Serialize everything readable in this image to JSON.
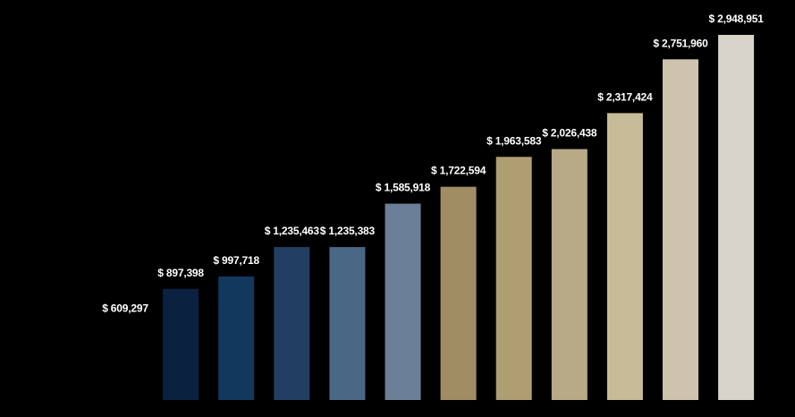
{
  "chart_data": {
    "type": "bar",
    "categories": [
      "",
      "",
      "",
      "",
      "",
      "",
      "",
      "",
      "",
      "",
      "",
      ""
    ],
    "values": [
      609297,
      897398,
      997718,
      1235463,
      1235383,
      1585918,
      1722594,
      1963583,
      2026438,
      2317424,
      2751960,
      2948951
    ],
    "data_labels": [
      "$ 609,297",
      "$ 897,398",
      "$ 997,718",
      "$ 1,235,463",
      "$ 1,235,383",
      "$ 1,585,918",
      "$ 1,722,594",
      "$ 1,963,583",
      "$ 2,026,438",
      "$ 2,317,424",
      "$ 2,751,960",
      "$ 2,948,951"
    ],
    "colors": [
      "#000000",
      "#0a2240",
      "#12385e",
      "#223f63",
      "#4a6886",
      "#6b8098",
      "#a08d64",
      "#b09e73",
      "#b8aa86",
      "#c8bb98",
      "#cec4ae",
      "#d8d4cc"
    ],
    "title": "",
    "xlabel": "",
    "ylabel": "",
    "ylim": [
      0,
      3000000
    ],
    "grid": false,
    "background": "#000000",
    "label_color": "#ffffff"
  }
}
